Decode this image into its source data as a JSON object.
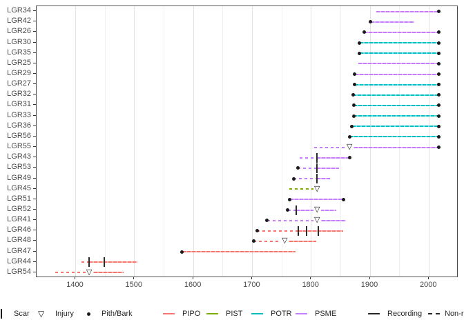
{
  "legend": {
    "scar": "Scar",
    "injury": "Injury",
    "pith_bark": "Pith/Bark",
    "recording": "Recording",
    "nonrecording": "Non-recording",
    "species": [
      {
        "name": "PIPO",
        "color": "#F8766D"
      },
      {
        "name": "PIST",
        "color": "#7CAE00"
      },
      {
        "name": "POTR",
        "color": "#00BFC4"
      },
      {
        "name": "PSME",
        "color": "#C77CFF"
      }
    ]
  },
  "colors": {
    "grid_major": "#E3E3E3",
    "grid_minor": "#F1F1F1",
    "panel_border": "#4D4D4D",
    "marker": "#1A1A1A",
    "axis_text": "#4A4A4A"
  },
  "chart_data": {
    "type": "line",
    "subtype": "fire-history-demography",
    "title": "",
    "xlabel": "",
    "ylabel": "",
    "x_axis": {
      "ticks": [
        1400,
        1500,
        1600,
        1700,
        1800,
        1900,
        2000
      ],
      "minor_step": 50,
      "range": [
        1334,
        2050
      ]
    },
    "y_categories": [
      "LGR34",
      "LGR42",
      "LGR26",
      "LGR30",
      "LGR35",
      "LGR25",
      "LGR29",
      "LGR27",
      "LGR32",
      "LGR31",
      "LGR33",
      "LGR36",
      "LGR56",
      "LGR55",
      "LGR43",
      "LGR53",
      "LGR49",
      "LGR45",
      "LGR51",
      "LGR52",
      "LGR41",
      "LGR46",
      "LGR48",
      "LGR47",
      "LGR44",
      "LGR54"
    ],
    "series": [
      {
        "label": "LGR34",
        "species": "PSME",
        "segments": [
          {
            "start": 1910,
            "end": 2017,
            "recording": true
          }
        ],
        "events": [
          {
            "type": "bark",
            "year": 2017
          }
        ]
      },
      {
        "label": "LGR42",
        "species": "PSME",
        "segments": [
          {
            "start": 1901,
            "end": 1975,
            "recording": true
          }
        ],
        "events": [
          {
            "type": "pith",
            "year": 1901
          }
        ]
      },
      {
        "label": "LGR26",
        "species": "PSME",
        "segments": [
          {
            "start": 1890,
            "end": 2017,
            "recording": true
          }
        ],
        "events": [
          {
            "type": "pith",
            "year": 1890
          },
          {
            "type": "bark",
            "year": 2017
          }
        ]
      },
      {
        "label": "LGR30",
        "species": "POTR",
        "segments": [
          {
            "start": 1882,
            "end": 2017,
            "recording": true
          }
        ],
        "events": [
          {
            "type": "pith",
            "year": 1882
          },
          {
            "type": "bark",
            "year": 2017
          }
        ]
      },
      {
        "label": "LGR35",
        "species": "POTR",
        "segments": [
          {
            "start": 1882,
            "end": 2017,
            "recording": true
          }
        ],
        "events": [
          {
            "type": "pith",
            "year": 1882
          },
          {
            "type": "bark",
            "year": 2017
          }
        ]
      },
      {
        "label": "LGR25",
        "species": "PSME",
        "segments": [
          {
            "start": 1880,
            "end": 2017,
            "recording": true
          }
        ],
        "events": [
          {
            "type": "bark",
            "year": 2017
          }
        ]
      },
      {
        "label": "LGR29",
        "species": "PSME",
        "segments": [
          {
            "start": 1874,
            "end": 2017,
            "recording": true
          }
        ],
        "events": [
          {
            "type": "pith",
            "year": 1874
          },
          {
            "type": "bark",
            "year": 2017
          }
        ]
      },
      {
        "label": "LGR27",
        "species": "POTR",
        "segments": [
          {
            "start": 1874,
            "end": 2017,
            "recording": true
          }
        ],
        "events": [
          {
            "type": "pith",
            "year": 1874
          },
          {
            "type": "bark",
            "year": 2017
          }
        ]
      },
      {
        "label": "LGR32",
        "species": "POTR",
        "segments": [
          {
            "start": 1871,
            "end": 2017,
            "recording": true
          }
        ],
        "events": [
          {
            "type": "pith",
            "year": 1871
          },
          {
            "type": "bark",
            "year": 2017
          }
        ]
      },
      {
        "label": "LGR31",
        "species": "POTR",
        "segments": [
          {
            "start": 1872,
            "end": 2017,
            "recording": true
          }
        ],
        "events": [
          {
            "type": "pith",
            "year": 1872
          },
          {
            "type": "bark",
            "year": 2017
          }
        ]
      },
      {
        "label": "LGR33",
        "species": "POTR",
        "segments": [
          {
            "start": 1872,
            "end": 2017,
            "recording": true
          }
        ],
        "events": [
          {
            "type": "pith",
            "year": 1872
          },
          {
            "type": "bark",
            "year": 2017
          }
        ]
      },
      {
        "label": "LGR36",
        "species": "POTR",
        "segments": [
          {
            "start": 1869,
            "end": 2017,
            "recording": true
          }
        ],
        "events": [
          {
            "type": "pith",
            "year": 1869
          },
          {
            "type": "bark",
            "year": 2017
          }
        ]
      },
      {
        "label": "LGR56",
        "species": "POTR",
        "segments": [
          {
            "start": 1865,
            "end": 2017,
            "recording": true
          }
        ],
        "events": [
          {
            "type": "pith",
            "year": 1865
          },
          {
            "type": "bark",
            "year": 2017
          }
        ]
      },
      {
        "label": "LGR55",
        "species": "PSME",
        "segments": [
          {
            "start": 1805,
            "end": 1865,
            "recording": false
          },
          {
            "start": 1865,
            "end": 2017,
            "recording": true
          }
        ],
        "events": [
          {
            "type": "injury",
            "year": 1865
          },
          {
            "type": "bark",
            "year": 2017
          }
        ]
      },
      {
        "label": "LGR43",
        "species": "PSME",
        "segments": [
          {
            "start": 1781,
            "end": 1810,
            "recording": false
          },
          {
            "start": 1810,
            "end": 1865,
            "recording": true
          }
        ],
        "events": [
          {
            "type": "scar",
            "year": 1810
          },
          {
            "type": "bark",
            "year": 1865
          }
        ]
      },
      {
        "label": "LGR53",
        "species": "PSME",
        "segments": [
          {
            "start": 1777,
            "end": 1810,
            "recording": false
          },
          {
            "start": 1810,
            "end": 1847,
            "recording": true
          }
        ],
        "events": [
          {
            "type": "pith",
            "year": 1777
          },
          {
            "type": "scar",
            "year": 1810
          }
        ]
      },
      {
        "label": "LGR49",
        "species": "PSME",
        "segments": [
          {
            "start": 1770,
            "end": 1810,
            "recording": false
          },
          {
            "start": 1810,
            "end": 1832,
            "recording": true
          }
        ],
        "events": [
          {
            "type": "pith",
            "year": 1770
          },
          {
            "type": "scar",
            "year": 1810
          }
        ]
      },
      {
        "label": "LGR45",
        "species": "PIST",
        "segments": [
          {
            "start": 1763,
            "end": 1810,
            "recording": false
          }
        ],
        "events": [
          {
            "type": "injury",
            "year": 1810
          }
        ]
      },
      {
        "label": "LGR51",
        "species": "PSME",
        "segments": [
          {
            "start": 1764,
            "end": 1855,
            "recording": true
          }
        ],
        "events": [
          {
            "type": "pith",
            "year": 1764
          },
          {
            "type": "bark",
            "year": 1855
          }
        ]
      },
      {
        "label": "LGR52",
        "species": "PSME",
        "segments": [
          {
            "start": 1760,
            "end": 1775,
            "recording": false
          },
          {
            "start": 1775,
            "end": 1843,
            "recording": true
          }
        ],
        "events": [
          {
            "type": "pith",
            "year": 1760
          },
          {
            "type": "scar",
            "year": 1775
          },
          {
            "type": "injury",
            "year": 1810
          }
        ]
      },
      {
        "label": "LGR41",
        "species": "PSME",
        "segments": [
          {
            "start": 1725,
            "end": 1810,
            "recording": false
          },
          {
            "start": 1810,
            "end": 1859,
            "recording": true
          }
        ],
        "events": [
          {
            "type": "pith",
            "year": 1725
          },
          {
            "type": "injury",
            "year": 1810
          }
        ]
      },
      {
        "label": "LGR46",
        "species": "PIPO",
        "segments": [
          {
            "start": 1708,
            "end": 1778,
            "recording": false
          },
          {
            "start": 1778,
            "end": 1854,
            "recording": true
          }
        ],
        "events": [
          {
            "type": "pith",
            "year": 1708
          },
          {
            "type": "scar",
            "year": 1778
          },
          {
            "type": "scar",
            "year": 1792
          },
          {
            "type": "scar",
            "year": 1812
          }
        ]
      },
      {
        "label": "LGR48",
        "species": "PIPO",
        "segments": [
          {
            "start": 1702,
            "end": 1755,
            "recording": false
          },
          {
            "start": 1755,
            "end": 1808,
            "recording": true
          }
        ],
        "events": [
          {
            "type": "pith",
            "year": 1702
          },
          {
            "type": "injury",
            "year": 1755
          }
        ]
      },
      {
        "label": "LGR47",
        "species": "PIPO",
        "segments": [
          {
            "start": 1581,
            "end": 1773,
            "recording": true
          }
        ],
        "events": [
          {
            "type": "pith",
            "year": 1581
          }
        ]
      },
      {
        "label": "LGR44",
        "species": "PIPO",
        "segments": [
          {
            "start": 1410,
            "end": 1423,
            "recording": false
          },
          {
            "start": 1423,
            "end": 1505,
            "recording": true
          }
        ],
        "events": [
          {
            "type": "scar",
            "year": 1423
          },
          {
            "type": "scar",
            "year": 1449
          }
        ]
      },
      {
        "label": "LGR54",
        "species": "PIPO",
        "segments": [
          {
            "start": 1365,
            "end": 1423,
            "recording": false
          },
          {
            "start": 1423,
            "end": 1482,
            "recording": true
          }
        ],
        "events": [
          {
            "type": "injury",
            "year": 1423
          }
        ]
      }
    ]
  }
}
